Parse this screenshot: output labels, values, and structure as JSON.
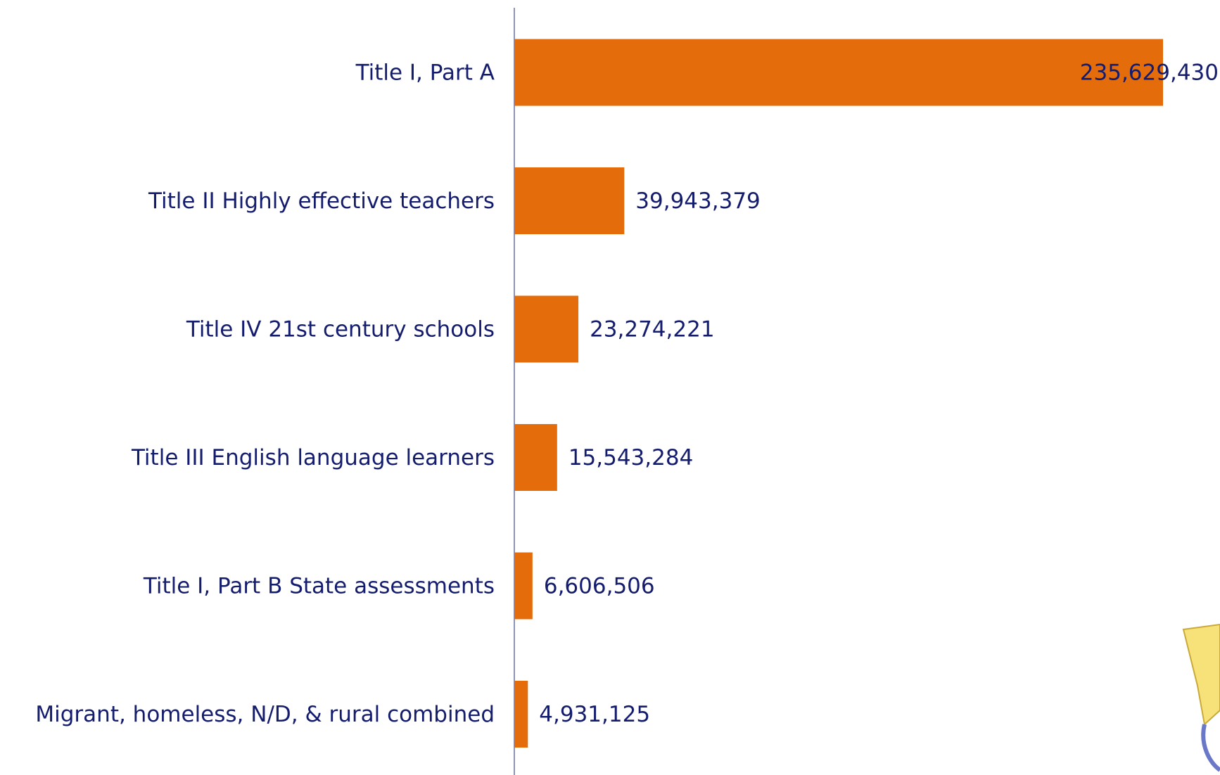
{
  "chart_data": {
    "type": "hbar",
    "categories": [
      "Title I, Part A",
      "Title II Highly effective teachers",
      "Title IV 21st century schools",
      "Title III English language learners",
      "Title I, Part B State assessments",
      "Migrant, homeless, N/D, & rural combined"
    ],
    "values": [
      235629430,
      39943379,
      23274221,
      15543284,
      6606506,
      4931125
    ],
    "value_labels": [
      "235,629,430",
      "39,943,379",
      "23,274,221",
      "15,543,284",
      "6,606,506",
      "4,931,125"
    ],
    "color": "#e46c0a"
  }
}
